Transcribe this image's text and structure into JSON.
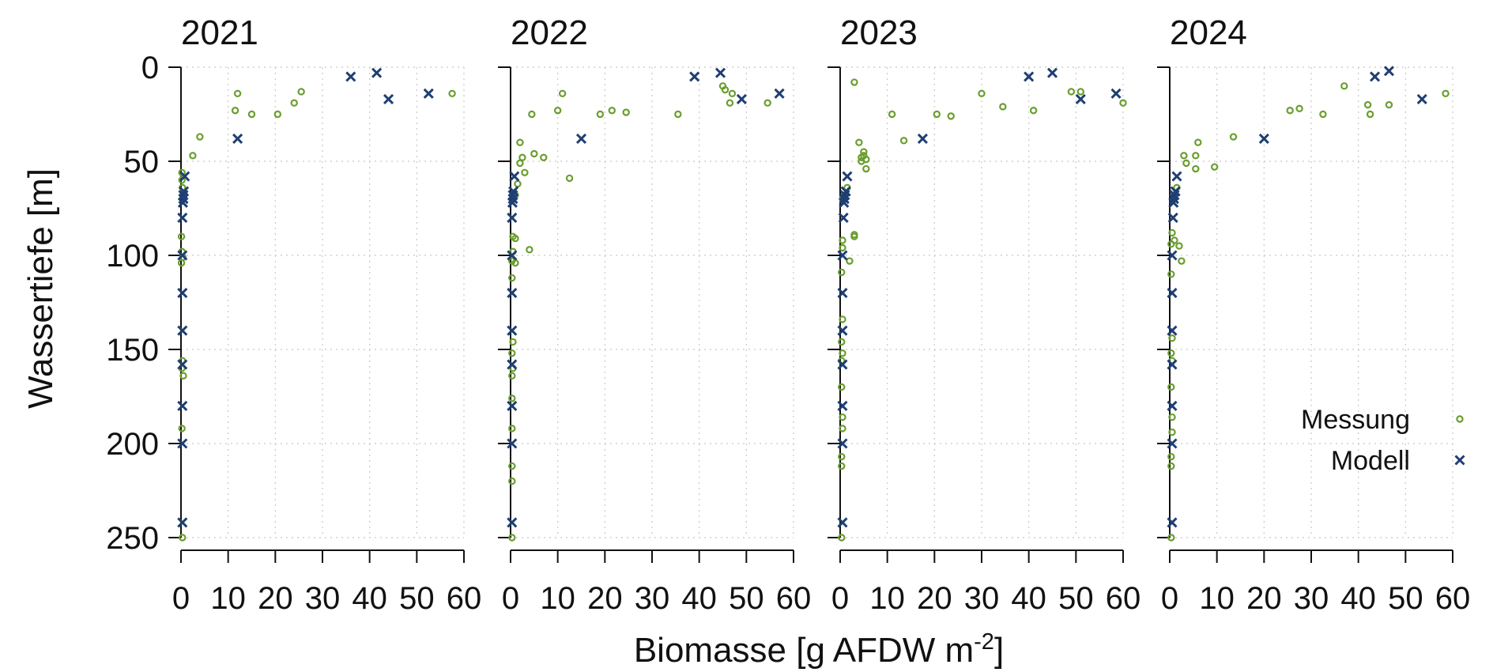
{
  "chart_data": {
    "type": "scatter",
    "ylabel": "Wassertiefe [m]",
    "xlabel_main": "Biomasse [g AFDW m",
    "xlabel_sup": "-2",
    "xlabel_end": "]",
    "xlim": [
      0,
      60
    ],
    "ylim": [
      250,
      0
    ],
    "y_inverted": true,
    "x_ticks": [
      "0",
      "10",
      "20",
      "30",
      "40",
      "50",
      "60"
    ],
    "y_ticks": [
      "0",
      "50",
      "100",
      "150",
      "200",
      "250"
    ],
    "grid": true,
    "legend_position": "right",
    "colors": {
      "Messung": "#6a9e2f",
      "Modell": "#1f3f73"
    },
    "legend": [
      {
        "label": "Messung",
        "marker": "circle"
      },
      {
        "label": "Modell",
        "marker": "cross"
      }
    ],
    "panels": [
      {
        "title": "2021",
        "series": [
          {
            "name": "Messung",
            "points": [
              [
                57.5,
                14
              ],
              [
                25.5,
                13
              ],
              [
                24,
                19
              ],
              [
                20.5,
                25
              ],
              [
                15,
                25
              ],
              [
                12,
                14
              ],
              [
                11.5,
                23
              ],
              [
                4,
                37
              ],
              [
                2.5,
                47
              ],
              [
                0.2,
                56
              ],
              [
                0.2,
                60
              ],
              [
                0.3,
                64
              ],
              [
                0.5,
                68
              ],
              [
                0.1,
                90
              ],
              [
                0.2,
                98
              ],
              [
                0.4,
                101
              ],
              [
                0.1,
                104
              ],
              [
                0.3,
                156
              ],
              [
                0.2,
                160
              ],
              [
                0.5,
                164
              ],
              [
                0.2,
                192
              ],
              [
                0.3,
                250
              ]
            ]
          },
          {
            "name": "Modell",
            "points": [
              [
                41.5,
                3
              ],
              [
                36,
                5
              ],
              [
                52.5,
                14
              ],
              [
                44,
                17
              ],
              [
                12,
                38
              ],
              [
                0.8,
                58
              ],
              [
                0.6,
                66
              ],
              [
                0.5,
                68
              ],
              [
                0.5,
                70
              ],
              [
                0.4,
                72
              ],
              [
                0.3,
                80
              ],
              [
                0.3,
                100
              ],
              [
                0.3,
                120
              ],
              [
                0.3,
                140
              ],
              [
                0.3,
                158
              ],
              [
                0.3,
                180
              ],
              [
                0.3,
                200
              ],
              [
                0.3,
                242
              ]
            ]
          }
        ]
      },
      {
        "title": "2022",
        "series": [
          {
            "name": "Messung",
            "points": [
              [
                45,
                10
              ],
              [
                45.5,
                12
              ],
              [
                47,
                14
              ],
              [
                46.5,
                19
              ],
              [
                54.5,
                19
              ],
              [
                11,
                14
              ],
              [
                10,
                23
              ],
              [
                21.5,
                23
              ],
              [
                24.5,
                24
              ],
              [
                19,
                25
              ],
              [
                35.5,
                25
              ],
              [
                4.5,
                25
              ],
              [
                2,
                40
              ],
              [
                5,
                46
              ],
              [
                7,
                48
              ],
              [
                2.5,
                48
              ],
              [
                2,
                51
              ],
              [
                3,
                56
              ],
              [
                12.5,
                59
              ],
              [
                1.5,
                62
              ],
              [
                1,
                68
              ],
              [
                0.5,
                90
              ],
              [
                1,
                91
              ],
              [
                4,
                97
              ],
              [
                0.5,
                98
              ],
              [
                0.3,
                103
              ],
              [
                1,
                104
              ],
              [
                0.3,
                112
              ],
              [
                0.5,
                146
              ],
              [
                0.3,
                152
              ],
              [
                0.5,
                160
              ],
              [
                0.3,
                164
              ],
              [
                0.3,
                176
              ],
              [
                0.3,
                192
              ],
              [
                0.3,
                212
              ],
              [
                0.3,
                220
              ],
              [
                0.3,
                250
              ]
            ]
          },
          {
            "name": "Modell",
            "points": [
              [
                44.5,
                3
              ],
              [
                39,
                5
              ],
              [
                57,
                14
              ],
              [
                49,
                17
              ],
              [
                15,
                38
              ],
              [
                0.8,
                58
              ],
              [
                0.6,
                66
              ],
              [
                0.5,
                68
              ],
              [
                0.5,
                70
              ],
              [
                0.4,
                72
              ],
              [
                0.3,
                80
              ],
              [
                0.3,
                100
              ],
              [
                0.3,
                120
              ],
              [
                0.3,
                140
              ],
              [
                0.3,
                158
              ],
              [
                0.3,
                180
              ],
              [
                0.3,
                200
              ],
              [
                0.3,
                242
              ]
            ]
          }
        ]
      },
      {
        "title": "2023",
        "series": [
          {
            "name": "Messung",
            "points": [
              [
                3,
                8
              ],
              [
                30,
                14
              ],
              [
                49,
                13
              ],
              [
                51,
                13
              ],
              [
                60,
                19
              ],
              [
                34.5,
                21
              ],
              [
                41,
                23
              ],
              [
                11,
                25
              ],
              [
                20.5,
                25
              ],
              [
                23.5,
                26
              ],
              [
                13.5,
                39
              ],
              [
                4,
                40
              ],
              [
                5,
                45
              ],
              [
                4.5,
                48
              ],
              [
                5,
                47
              ],
              [
                5.5,
                49
              ],
              [
                4.5,
                50
              ],
              [
                5.5,
                54
              ],
              [
                1.5,
                64
              ],
              [
                0.5,
                70
              ],
              [
                3,
                89
              ],
              [
                3,
                90
              ],
              [
                0.5,
                92
              ],
              [
                0.5,
                96
              ],
              [
                2,
                103
              ],
              [
                0.3,
                109
              ],
              [
                0.5,
                134
              ],
              [
                0.3,
                146
              ],
              [
                0.5,
                152
              ],
              [
                0.3,
                156
              ],
              [
                0.3,
                170
              ],
              [
                0.5,
                186
              ],
              [
                0.5,
                192
              ],
              [
                0.3,
                207
              ],
              [
                0.3,
                212
              ],
              [
                0.3,
                250
              ]
            ]
          },
          {
            "name": "Modell",
            "points": [
              [
                45,
                3
              ],
              [
                40,
                5
              ],
              [
                58.5,
                14
              ],
              [
                51,
                17
              ],
              [
                17.5,
                38
              ],
              [
                1.5,
                58
              ],
              [
                1.2,
                66
              ],
              [
                1,
                68
              ],
              [
                0.9,
                70
              ],
              [
                0.8,
                72
              ],
              [
                0.7,
                80
              ],
              [
                0.5,
                100
              ],
              [
                0.5,
                120
              ],
              [
                0.5,
                140
              ],
              [
                0.5,
                158
              ],
              [
                0.5,
                180
              ],
              [
                0.5,
                200
              ],
              [
                0.5,
                242
              ]
            ]
          }
        ]
      },
      {
        "title": "2024",
        "series": [
          {
            "name": "Messung",
            "points": [
              [
                37,
                10
              ],
              [
                58.5,
                14
              ],
              [
                42,
                20
              ],
              [
                46.5,
                20
              ],
              [
                25.5,
                23
              ],
              [
                27.5,
                22
              ],
              [
                32.5,
                25
              ],
              [
                42.5,
                25
              ],
              [
                13.5,
                37
              ],
              [
                6,
                40
              ],
              [
                3,
                47
              ],
              [
                5.5,
                47
              ],
              [
                3.5,
                51
              ],
              [
                9.5,
                53
              ],
              [
                5.5,
                54
              ],
              [
                1.5,
                64
              ],
              [
                0.5,
                88
              ],
              [
                1,
                92
              ],
              [
                0.3,
                94
              ],
              [
                2,
                95
              ],
              [
                2.5,
                103
              ],
              [
                0.3,
                110
              ],
              [
                0.5,
                144
              ],
              [
                0.3,
                152
              ],
              [
                0.5,
                156
              ],
              [
                0.3,
                170
              ],
              [
                0.5,
                186
              ],
              [
                0.5,
                194
              ],
              [
                0.3,
                207
              ],
              [
                0.3,
                212
              ],
              [
                0.3,
                250
              ]
            ]
          },
          {
            "name": "Modell",
            "points": [
              [
                46.5,
                2
              ],
              [
                43.5,
                5
              ],
              [
                53.5,
                17
              ],
              [
                20,
                38
              ],
              [
                1.5,
                58
              ],
              [
                1.2,
                66
              ],
              [
                1,
                68
              ],
              [
                0.9,
                70
              ],
              [
                0.8,
                72
              ],
              [
                0.7,
                80
              ],
              [
                0.5,
                100
              ],
              [
                0.5,
                120
              ],
              [
                0.5,
                140
              ],
              [
                0.5,
                158
              ],
              [
                0.5,
                180
              ],
              [
                0.5,
                200
              ],
              [
                0.5,
                242
              ]
            ]
          }
        ]
      }
    ]
  }
}
